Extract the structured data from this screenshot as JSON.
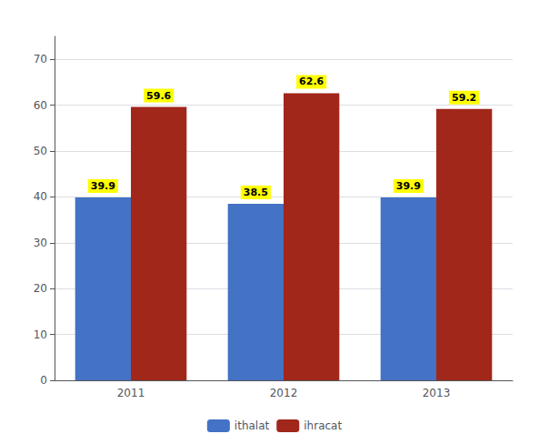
{
  "chart_data": {
    "type": "bar",
    "categories": [
      "2011",
      "2012",
      "2013"
    ],
    "series": [
      {
        "name": "ithalat",
        "color": "#4472C4",
        "values": [
          39.9,
          38.5,
          39.9
        ]
      },
      {
        "name": "ihracat",
        "color": "#A0271A",
        "values": [
          59.6,
          62.6,
          59.2
        ]
      }
    ],
    "ylim": [
      0,
      75
    ],
    "yticks": [
      0,
      10,
      20,
      30,
      40,
      50,
      60,
      70
    ],
    "grid": true,
    "legend": "bottom",
    "data_labels": true
  }
}
